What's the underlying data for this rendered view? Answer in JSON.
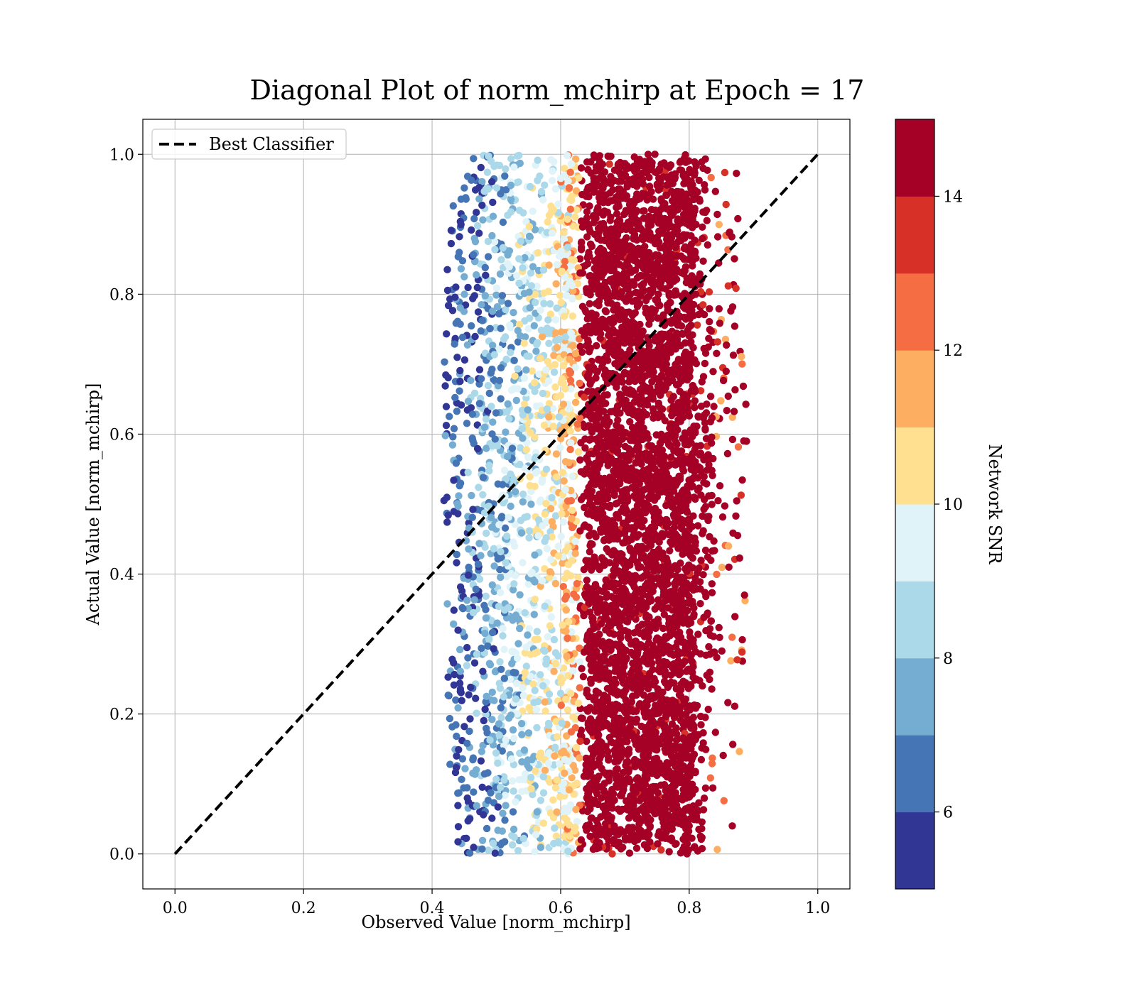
{
  "chart_data": {
    "type": "scatter",
    "title": "Diagonal Plot of norm_mchirp at Epoch = 17",
    "xlabel": "Observed Value [norm_mchirp]",
    "ylabel": "Actual Value [norm_mchirp]",
    "xlim": [
      -0.05,
      1.05
    ],
    "ylim": [
      -0.05,
      1.05
    ],
    "xticks": [
      0.0,
      0.2,
      0.4,
      0.6,
      0.8,
      1.0
    ],
    "yticks": [
      0.0,
      0.2,
      0.4,
      0.6,
      0.8,
      1.0
    ],
    "xtick_labels": [
      "0.0",
      "0.2",
      "0.4",
      "0.6",
      "0.8",
      "1.0"
    ],
    "ytick_labels": [
      "0.0",
      "0.2",
      "0.4",
      "0.6",
      "0.8",
      "1.0"
    ],
    "grid": true,
    "legend": {
      "placement": "top-left",
      "entries": [
        "Best Classifier"
      ]
    },
    "diagonal_line": {
      "name": "Best Classifier",
      "x": [
        0.0,
        1.0
      ],
      "y": [
        0.0,
        1.0
      ],
      "style": "dashed",
      "color": "#000000"
    },
    "scatter_cloud": {
      "x_range": [
        0.4,
        0.89
      ],
      "y_range": [
        0.0,
        1.0
      ],
      "dense_core_x": [
        0.62,
        0.83
      ],
      "color_by": "Network SNR"
    },
    "colorbar": {
      "label": "Network SNR",
      "range": [
        5,
        15
      ],
      "ticks": [
        6,
        8,
        10,
        12,
        14
      ],
      "tick_labels": [
        "6",
        "8",
        "10",
        "12",
        "14"
      ],
      "levels": 10,
      "colors": [
        "#313695",
        "#4575b4",
        "#74add1",
        "#abd9e9",
        "#e0f3f8",
        "#fee090",
        "#fdae61",
        "#f46d43",
        "#d73027",
        "#a50026"
      ]
    }
  }
}
